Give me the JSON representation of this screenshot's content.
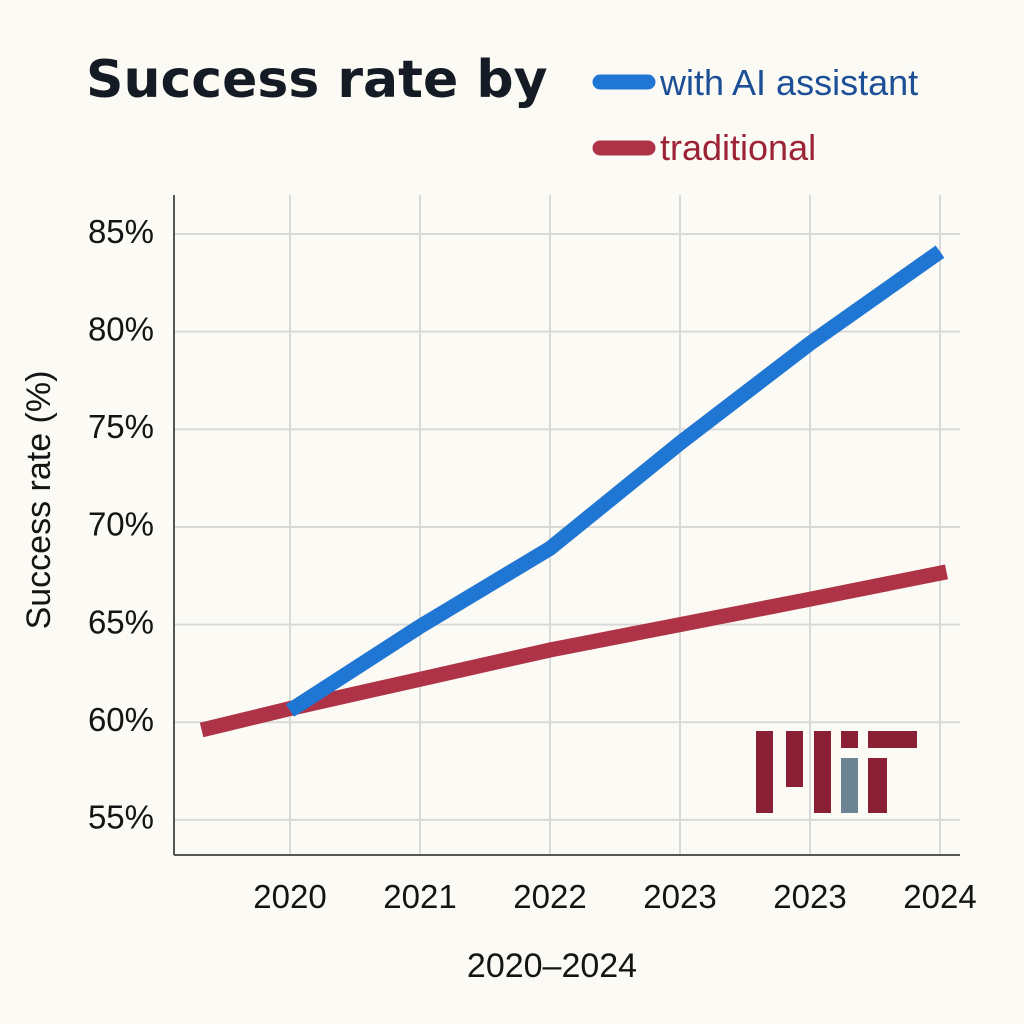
{
  "chart_data": {
    "type": "line",
    "title": "Success rate by",
    "xlabel": "2020–2024",
    "ylabel": "Success rate (%)",
    "ylim": [
      53.2,
      87
    ],
    "grid": true,
    "legend_position": "top-right",
    "categories": [
      "2020",
      "2021",
      "2022",
      "2023",
      "2023",
      "2024"
    ],
    "yticks": [
      85,
      80,
      75,
      70,
      65,
      60,
      55
    ],
    "ytick_labels": [
      "85%",
      "80%",
      "75%",
      "70%",
      "65%",
      "60%",
      "55%"
    ],
    "series": [
      {
        "name": "with AI assistant",
        "color": "#1f76d3",
        "text_color": "#1c4f96",
        "points": [
          {
            "x": 0,
            "y": 60.6
          },
          {
            "x": 1,
            "y": 64.9
          },
          {
            "x": 2,
            "y": 68.9
          },
          {
            "x": 3,
            "y": 74.3
          },
          {
            "x": 4,
            "y": 79.4
          },
          {
            "x": 5,
            "y": 84.1
          }
        ]
      },
      {
        "name": "traditional",
        "color": "#ae3347",
        "text_color": "#9c2235",
        "points": [
          {
            "x": -0.68,
            "y": 59.6
          },
          {
            "x": 0,
            "y": 60.7
          },
          {
            "x": 1,
            "y": 62.2
          },
          {
            "x": 2,
            "y": 63.7
          },
          {
            "x": 3,
            "y": 65.0
          },
          {
            "x": 4,
            "y": 66.3
          },
          {
            "x": 5.05,
            "y": 67.7
          }
        ]
      }
    ],
    "logo": {
      "text": "MIT",
      "primary_color": "#8a1f35",
      "accent_color": "#6b8392"
    }
  }
}
